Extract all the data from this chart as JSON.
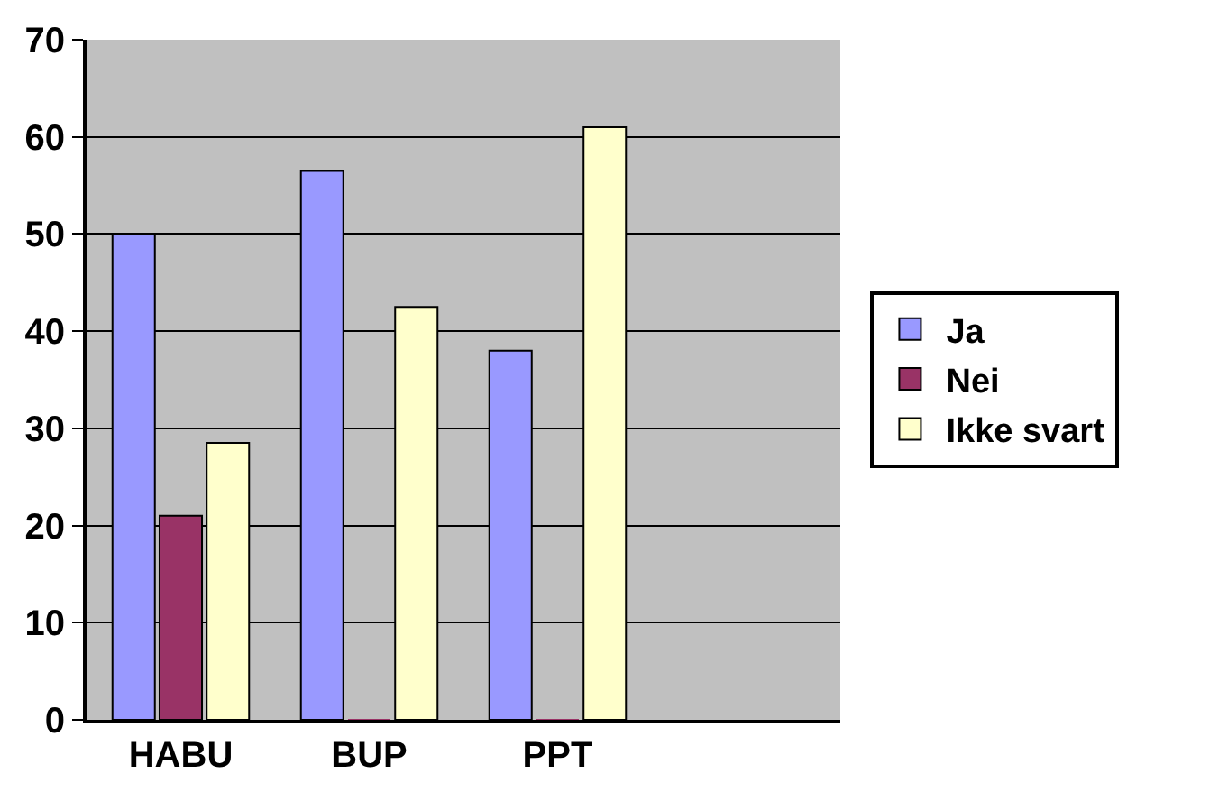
{
  "chart_data": {
    "type": "bar",
    "categories": [
      "HABU",
      "BUP",
      "PPT",
      null
    ],
    "series": [
      {
        "name": "Ja",
        "color": "#9999ff",
        "values": [
          50,
          56.5,
          38,
          null
        ]
      },
      {
        "name": "Nei",
        "color": "#993366",
        "values": [
          21,
          0,
          0,
          null
        ]
      },
      {
        "name": "Ikke svart",
        "color": "#ffffcc",
        "values": [
          28.5,
          42.5,
          61,
          null
        ]
      }
    ],
    "ylim": [
      0,
      70
    ],
    "yticks": [
      0,
      10,
      20,
      30,
      40,
      50,
      60,
      70
    ],
    "grid": "y",
    "legend": "right"
  }
}
